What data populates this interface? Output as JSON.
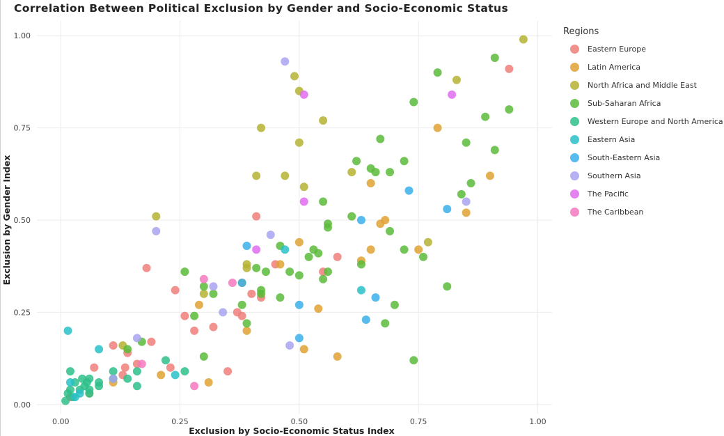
{
  "chart_data": {
    "type": "scatter",
    "title": "Correlation Between Political Exclusion by Gender and Socio-Economic Status",
    "xlabel": "Exclusion by Socio-Economic Status Index",
    "ylabel": "Exclusion by Gender Index",
    "xlim": [
      -0.05,
      1.03
    ],
    "ylim": [
      -0.025,
      1.04
    ],
    "x_ticks": [
      "0.00",
      "0.25",
      "0.50",
      "0.75",
      "1.00"
    ],
    "x_tick_values": [
      0,
      0.25,
      0.5,
      0.75,
      1.0
    ],
    "y_ticks": [
      "0.00",
      "0.25",
      "0.50",
      "0.75",
      "1.00"
    ],
    "y_tick_values": [
      0,
      0.25,
      0.5,
      0.75,
      1.0
    ],
    "grid": true,
    "legend_title": "Regions",
    "legend_position": "right",
    "series": [
      {
        "name": "Eastern Europe",
        "color": "#F07F7A",
        "points": [
          [
            0.02,
            0.02
          ],
          [
            0.07,
            0.1
          ],
          [
            0.11,
            0.16
          ],
          [
            0.13,
            0.08
          ],
          [
            0.135,
            0.1
          ],
          [
            0.14,
            0.14
          ],
          [
            0.16,
            0.11
          ],
          [
            0.18,
            0.37
          ],
          [
            0.19,
            0.17
          ],
          [
            0.23,
            0.1
          ],
          [
            0.24,
            0.31
          ],
          [
            0.26,
            0.24
          ],
          [
            0.28,
            0.2
          ],
          [
            0.32,
            0.21
          ],
          [
            0.35,
            0.09
          ],
          [
            0.37,
            0.25
          ],
          [
            0.38,
            0.24
          ],
          [
            0.4,
            0.3
          ],
          [
            0.41,
            0.51
          ],
          [
            0.42,
            0.29
          ],
          [
            0.45,
            0.38
          ],
          [
            0.55,
            0.36
          ],
          [
            0.58,
            0.4
          ],
          [
            0.94,
            0.91
          ]
        ]
      },
      {
        "name": "Latin America",
        "color": "#E0A234",
        "points": [
          [
            0.06,
            0.03
          ],
          [
            0.11,
            0.06
          ],
          [
            0.21,
            0.08
          ],
          [
            0.29,
            0.27
          ],
          [
            0.31,
            0.06
          ],
          [
            0.38,
            0.33
          ],
          [
            0.39,
            0.2
          ],
          [
            0.46,
            0.38
          ],
          [
            0.5,
            0.44
          ],
          [
            0.51,
            0.15
          ],
          [
            0.54,
            0.26
          ],
          [
            0.58,
            0.13
          ],
          [
            0.63,
            0.39
          ],
          [
            0.65,
            0.42
          ],
          [
            0.65,
            0.6
          ],
          [
            0.67,
            0.49
          ],
          [
            0.68,
            0.5
          ],
          [
            0.75,
            0.42
          ],
          [
            0.79,
            0.75
          ],
          [
            0.85,
            0.52
          ],
          [
            0.9,
            0.62
          ]
        ]
      },
      {
        "name": "North Africa and Middle East",
        "color": "#B5B232",
        "points": [
          [
            0.13,
            0.16
          ],
          [
            0.2,
            0.51
          ],
          [
            0.3,
            0.3
          ],
          [
            0.39,
            0.38
          ],
          [
            0.39,
            0.37
          ],
          [
            0.41,
            0.62
          ],
          [
            0.42,
            0.75
          ],
          [
            0.47,
            0.62
          ],
          [
            0.49,
            0.89
          ],
          [
            0.5,
            0.71
          ],
          [
            0.5,
            0.85
          ],
          [
            0.51,
            0.59
          ],
          [
            0.55,
            0.77
          ],
          [
            0.61,
            0.63
          ],
          [
            0.77,
            0.44
          ],
          [
            0.83,
            0.88
          ],
          [
            0.97,
            0.99
          ]
        ]
      },
      {
        "name": "Sub-Saharan Africa",
        "color": "#5BBB3A",
        "points": [
          [
            0.14,
            0.15
          ],
          [
            0.17,
            0.17
          ],
          [
            0.26,
            0.36
          ],
          [
            0.28,
            0.24
          ],
          [
            0.3,
            0.32
          ],
          [
            0.3,
            0.13
          ],
          [
            0.32,
            0.3
          ],
          [
            0.38,
            0.27
          ],
          [
            0.39,
            0.22
          ],
          [
            0.41,
            0.37
          ],
          [
            0.42,
            0.3
          ],
          [
            0.42,
            0.31
          ],
          [
            0.43,
            0.36
          ],
          [
            0.46,
            0.43
          ],
          [
            0.46,
            0.29
          ],
          [
            0.48,
            0.36
          ],
          [
            0.5,
            0.35
          ],
          [
            0.52,
            0.4
          ],
          [
            0.53,
            0.42
          ],
          [
            0.54,
            0.41
          ],
          [
            0.55,
            0.55
          ],
          [
            0.55,
            0.34
          ],
          [
            0.56,
            0.36
          ],
          [
            0.56,
            0.48
          ],
          [
            0.56,
            0.49
          ],
          [
            0.61,
            0.51
          ],
          [
            0.62,
            0.66
          ],
          [
            0.63,
            0.38
          ],
          [
            0.65,
            0.64
          ],
          [
            0.66,
            0.63
          ],
          [
            0.67,
            0.72
          ],
          [
            0.68,
            0.22
          ],
          [
            0.69,
            0.47
          ],
          [
            0.69,
            0.63
          ],
          [
            0.7,
            0.27
          ],
          [
            0.72,
            0.42
          ],
          [
            0.72,
            0.66
          ],
          [
            0.74,
            0.12
          ],
          [
            0.74,
            0.82
          ],
          [
            0.76,
            0.4
          ],
          [
            0.79,
            0.9
          ],
          [
            0.81,
            0.32
          ],
          [
            0.84,
            0.57
          ],
          [
            0.85,
            0.71
          ],
          [
            0.86,
            0.6
          ],
          [
            0.89,
            0.78
          ],
          [
            0.91,
            0.69
          ],
          [
            0.91,
            0.94
          ],
          [
            0.94,
            0.8
          ]
        ]
      },
      {
        "name": "Western Europe and North America",
        "color": "#2EBF8A",
        "points": [
          [
            0.01,
            0.01
          ],
          [
            0.015,
            0.03
          ],
          [
            0.02,
            0.04
          ],
          [
            0.02,
            0.09
          ],
          [
            0.025,
            0.02
          ],
          [
            0.03,
            0.06
          ],
          [
            0.04,
            0.04
          ],
          [
            0.045,
            0.07
          ],
          [
            0.05,
            0.05
          ],
          [
            0.055,
            0.06
          ],
          [
            0.06,
            0.03
          ],
          [
            0.06,
            0.07
          ],
          [
            0.06,
            0.04
          ],
          [
            0.08,
            0.06
          ],
          [
            0.08,
            0.05
          ],
          [
            0.11,
            0.09
          ],
          [
            0.11,
            0.07
          ],
          [
            0.14,
            0.07
          ],
          [
            0.16,
            0.09
          ],
          [
            0.16,
            0.05
          ],
          [
            0.22,
            0.12
          ],
          [
            0.26,
            0.09
          ]
        ]
      },
      {
        "name": "Eastern Asia",
        "color": "#29C0C8",
        "points": [
          [
            0.015,
            0.2
          ],
          [
            0.02,
            0.06
          ],
          [
            0.03,
            0.02
          ],
          [
            0.04,
            0.03
          ],
          [
            0.08,
            0.15
          ],
          [
            0.24,
            0.08
          ],
          [
            0.47,
            0.42
          ],
          [
            0.63,
            0.31
          ]
        ]
      },
      {
        "name": "South-Eastern Asia",
        "color": "#39B0EA",
        "points": [
          [
            0.38,
            0.33
          ],
          [
            0.39,
            0.43
          ],
          [
            0.5,
            0.27
          ],
          [
            0.5,
            0.18
          ],
          [
            0.63,
            0.5
          ],
          [
            0.64,
            0.23
          ],
          [
            0.66,
            0.29
          ],
          [
            0.73,
            0.58
          ],
          [
            0.81,
            0.53
          ]
        ]
      },
      {
        "name": "Southern Asia",
        "color": "#A9A3F0",
        "points": [
          [
            0.11,
            0.07
          ],
          [
            0.16,
            0.18
          ],
          [
            0.2,
            0.47
          ],
          [
            0.32,
            0.32
          ],
          [
            0.34,
            0.25
          ],
          [
            0.44,
            0.46
          ],
          [
            0.47,
            0.93
          ],
          [
            0.48,
            0.16
          ],
          [
            0.85,
            0.55
          ]
        ]
      },
      {
        "name": "The Pacific",
        "color": "#E06CEE",
        "points": [
          [
            0.41,
            0.42
          ],
          [
            0.51,
            0.84
          ],
          [
            0.51,
            0.55
          ],
          [
            0.82,
            0.84
          ]
        ]
      },
      {
        "name": "The Caribbean",
        "color": "#F478BE",
        "points": [
          [
            0.17,
            0.11
          ],
          [
            0.28,
            0.05
          ],
          [
            0.3,
            0.34
          ],
          [
            0.36,
            0.33
          ]
        ]
      }
    ]
  }
}
